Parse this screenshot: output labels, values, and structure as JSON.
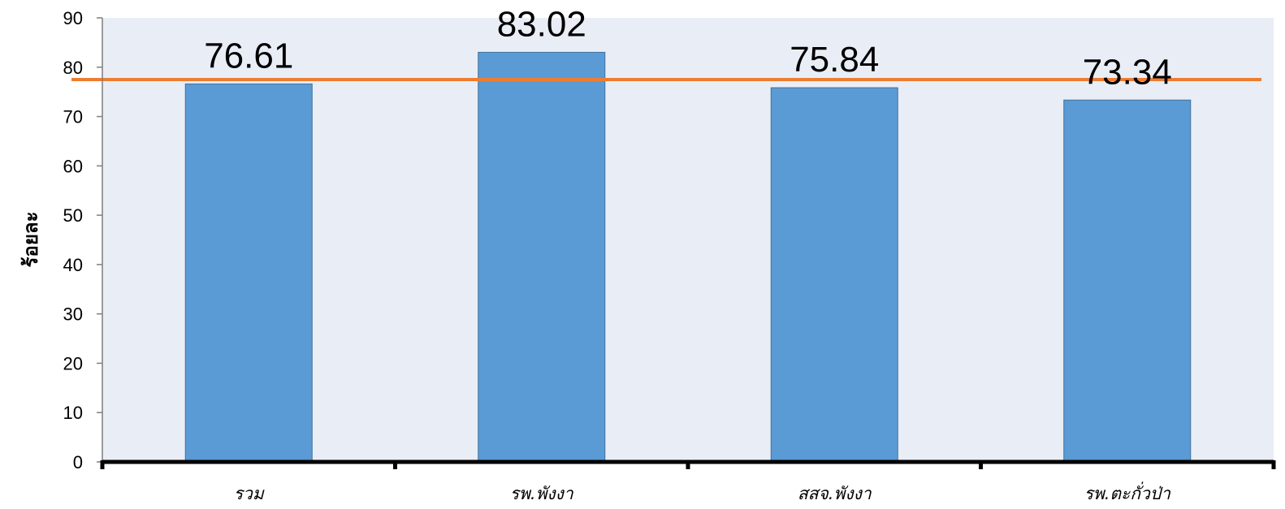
{
  "chart_data": {
    "type": "bar",
    "ylabel": "ร้อยละ",
    "categories": [
      "รวม",
      "รพ.พังงา",
      "สสจ.พังงา",
      "รพ.ตะกั่วป่า"
    ],
    "values": [
      76.61,
      83.02,
      75.84,
      73.34
    ],
    "value_labels": [
      "76.61",
      "83.02",
      "75.84",
      "73.34"
    ],
    "ylim": [
      0,
      90
    ],
    "yticks": [
      0,
      10,
      20,
      30,
      40,
      50,
      60,
      70,
      80,
      90
    ],
    "target_line": 77.5,
    "legend": "none",
    "grid": false
  },
  "colors": {
    "bar": "#5b9bd5",
    "bar_border": "#41719c",
    "plot_bg": "#e9edf6",
    "target_line": "#ed7d31",
    "axis": "#000000"
  }
}
